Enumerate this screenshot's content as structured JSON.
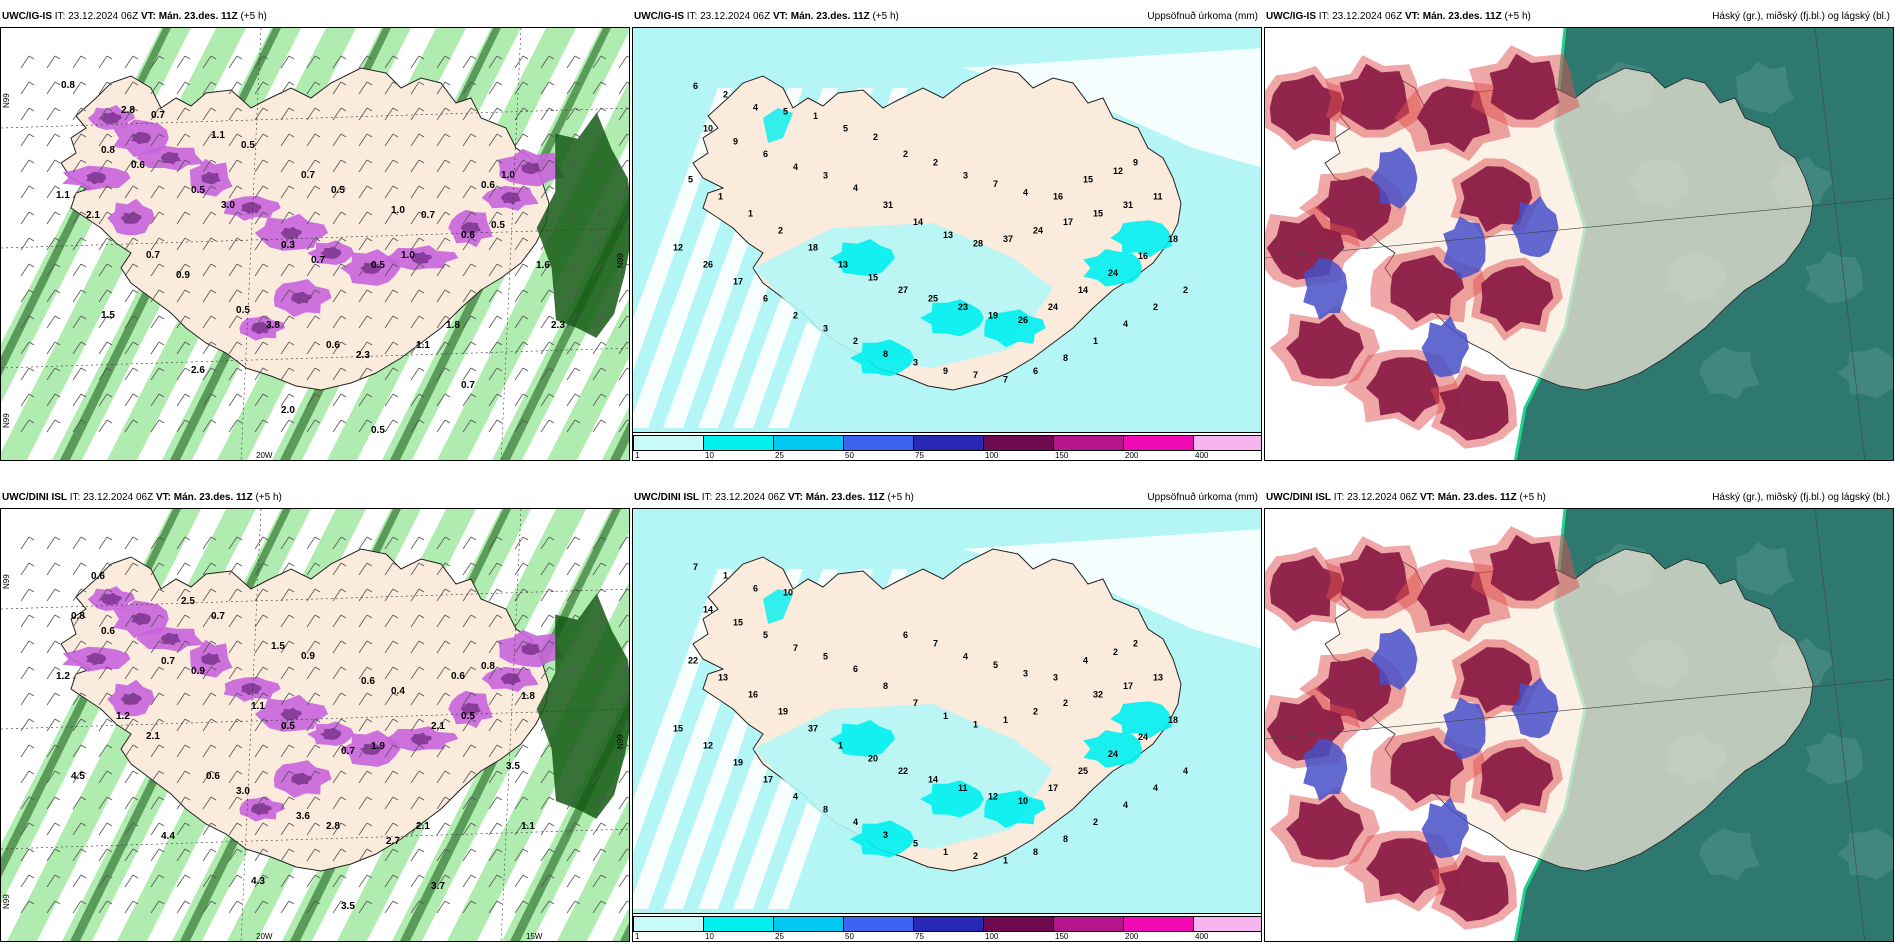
{
  "panels": [
    {
      "id": "p1",
      "kind": "wind",
      "model": "UWC/IG-IS",
      "it": "IT: 23.12.2024 06Z",
      "vt_label": "VT:",
      "vt": "Mán. 23.des. 11Z",
      "lead": "(+5 h)",
      "right": "",
      "lat_labels": [
        "N99",
        "N99",
        "N99"
      ],
      "lon_labels": [
        "20W"
      ],
      "values": [
        "0.8",
        "0.7",
        "0.5",
        "0.5",
        "0.7",
        "1.0",
        "0.6",
        "3.0",
        "0.7",
        "1.0",
        "0.5",
        "2.1",
        "0.9",
        "3.8",
        "2.3",
        "1.8",
        "1.6",
        "1.5",
        "2.6",
        "2.0",
        "0.5",
        "0.7",
        "2.3",
        "2.8",
        "1.1",
        "0.7",
        "1.0",
        "0.6",
        "0.8",
        "0.5",
        "0.3",
        "0.5",
        "0.6",
        "1.1",
        "0.7",
        "0.5",
        "0.6",
        "1.1"
      ]
    },
    {
      "id": "p2",
      "kind": "precip",
      "model": "UWC/IG-IS",
      "it": "IT: 23.12.2024 06Z",
      "vt_label": "VT:",
      "vt": "Mán. 23.des. 11Z",
      "lead": "(+5 h)",
      "right": "Uppsöfnuð úrkoma (mm)",
      "values": [
        "6",
        "2",
        "4",
        "5",
        "1",
        "5",
        "2",
        "2",
        "2",
        "3",
        "7",
        "4",
        "16",
        "15",
        "12",
        "9",
        "10",
        "9",
        "6",
        "4",
        "3",
        "4",
        "31",
        "14",
        "13",
        "28",
        "37",
        "24",
        "17",
        "15",
        "31",
        "11",
        "5",
        "1",
        "1",
        "2",
        "18",
        "13",
        "15",
        "27",
        "25",
        "23",
        "19",
        "26",
        "24",
        "14",
        "24",
        "16",
        "18",
        "12",
        "26",
        "17",
        "6",
        "2",
        "3",
        "2",
        "8",
        "3",
        "9",
        "7",
        "7",
        "6",
        "8",
        "1",
        "4",
        "2",
        "2"
      ]
    },
    {
      "id": "p3",
      "kind": "cloud",
      "model": "UWC/IG-IS",
      "it": "IT: 23.12.2024 06Z",
      "vt_label": "VT:",
      "vt": "Mán. 23.des. 11Z",
      "lead": "(+5 h)",
      "right": "Háský (gr.), miðský (fj.bl.) og lágský (bl.)"
    },
    {
      "id": "p4",
      "kind": "wind",
      "model": "UWC/DINI ISL",
      "it": "IT: 23.12.2024 06Z",
      "vt_label": "VT:",
      "vt": "Mán. 23.des. 11Z",
      "lead": "(+5 h)",
      "right": "",
      "lat_labels": [
        "N99",
        "N99",
        "N99"
      ],
      "lon_labels": [
        "20W",
        "15W"
      ],
      "values": [
        "0.7",
        "0.9",
        "0.4",
        "0.8",
        "0.6",
        "0.9",
        "0.5",
        "1.9",
        "0.5",
        "1.2",
        "2.1",
        "3.0",
        "2.8",
        "2.1",
        "3.5",
        "4.5",
        "4.4",
        "4.3",
        "3.5",
        "3.7",
        "1.1",
        "0.6",
        "2.5",
        "1.5",
        "0.6",
        "0.6",
        "0.8",
        "0.7",
        "1.1",
        "0.7",
        "2.1",
        "1.8",
        "1.2",
        "0.6",
        "3.6",
        "2.7"
      ]
    },
    {
      "id": "p5",
      "kind": "precip",
      "model": "UWC/DINI ISL",
      "it": "IT: 23.12.2024 06Z",
      "vt_label": "VT:",
      "vt": "Mán. 23.des. 11Z",
      "lead": "(+5 h)",
      "right": "Uppsöfnuð úrkoma (mm)",
      "values": [
        "6",
        "7",
        "4",
        "5",
        "3",
        "3",
        "4",
        "2",
        "2",
        "14",
        "15",
        "5",
        "7",
        "5",
        "6",
        "8",
        "7",
        "1",
        "1",
        "1",
        "2",
        "2",
        "32",
        "17",
        "13",
        "22",
        "13",
        "16",
        "19",
        "37",
        "1",
        "20",
        "22",
        "14",
        "11",
        "12",
        "10",
        "17",
        "25",
        "24",
        "24",
        "18",
        "15",
        "12",
        "19",
        "17",
        "4",
        "8",
        "4",
        "3",
        "5",
        "1",
        "2",
        "1",
        "8",
        "8",
        "2",
        "4",
        "4",
        "4",
        "7",
        "1",
        "6",
        "10"
      ]
    },
    {
      "id": "p6",
      "kind": "cloud",
      "model": "UWC/DINI ISL",
      "it": "IT: 23.12.2024 06Z",
      "vt_label": "VT:",
      "vt": "Mán. 23.des. 11Z",
      "lead": "(+5 h)",
      "right": "Háský (gr.), miðský (fj.bl.) og lágský (bl.)"
    }
  ],
  "colorbar": {
    "ticks": [
      "1",
      "10",
      "25",
      "50",
      "75",
      "100",
      "150",
      "200",
      "400"
    ],
    "colors": [
      "#c8fafa",
      "#00f0f0",
      "#00c8f0",
      "#3c64f0",
      "#2828b4",
      "#6e0a50",
      "#b4148c",
      "#f00ab4",
      "#f5b4f0"
    ]
  },
  "colors": {
    "land": "#faebdc",
    "sea_precip": "#b4f6f6",
    "wind_green": "#96e696",
    "wind_dark": "#145a14",
    "wind_magenta": "#c864dc",
    "cloud_red": "#8c1e46",
    "cloud_blue": "#4650c8",
    "cloud_teal": "#2e7870",
    "cloud_green": "#20d28c"
  }
}
